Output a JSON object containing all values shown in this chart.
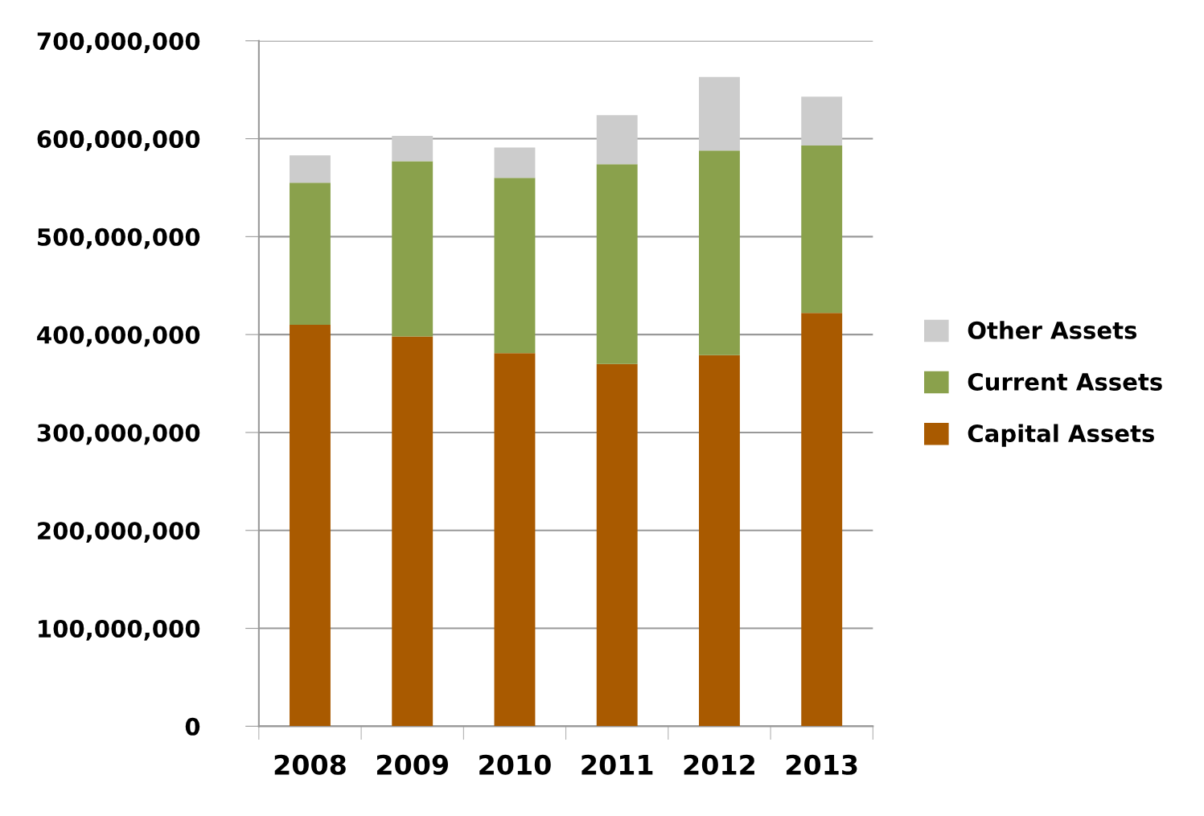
{
  "chart_data": {
    "type": "bar",
    "stacked": true,
    "categories": [
      "2008",
      "2009",
      "2010",
      "2011",
      "2012",
      "2013"
    ],
    "series": [
      {
        "name": "Capital Assets",
        "color": "#a95a00",
        "values": [
          410000000,
          398000000,
          381000000,
          370000000,
          379000000,
          422000000
        ]
      },
      {
        "name": "Current Assets",
        "color": "#8aa14c",
        "values": [
          145000000,
          179000000,
          179000000,
          204000000,
          209000000,
          171000000
        ]
      },
      {
        "name": "Other Assets",
        "color": "#cccccc",
        "values": [
          28000000,
          26000000,
          31000000,
          50000000,
          75000000,
          50000000
        ]
      }
    ],
    "ylim": [
      0,
      700000000
    ],
    "yticks": [
      {
        "value": 0,
        "label": "0"
      },
      {
        "value": 100000000,
        "label": "100,000,000"
      },
      {
        "value": 200000000,
        "label": "200,000,000"
      },
      {
        "value": 300000000,
        "label": "300,000,000"
      },
      {
        "value": 400000000,
        "label": "400,000,000"
      },
      {
        "value": 500000000,
        "label": "500,000,000"
      },
      {
        "value": 600000000,
        "label": "600,000,000"
      },
      {
        "value": 700000000,
        "label": "700,000,000"
      }
    ],
    "grid": "y",
    "legend": "right"
  }
}
